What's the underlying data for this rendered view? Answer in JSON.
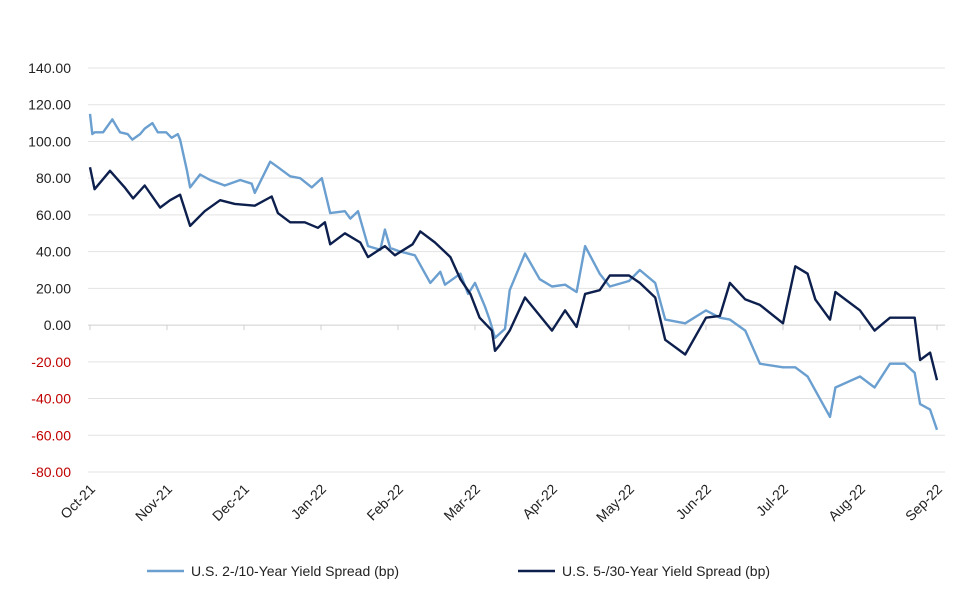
{
  "chart_data": {
    "type": "line",
    "title": "",
    "xlabel": "",
    "ylabel": "",
    "ylim": [
      -80,
      140
    ],
    "yticks": [
      "140.00",
      "120.00",
      "100.00",
      "80.00",
      "60.00",
      "40.00",
      "20.00",
      "0.00",
      "-20.00",
      "-40.00",
      "-60.00",
      "-80.00"
    ],
    "ytick_values": [
      140,
      120,
      100,
      80,
      60,
      40,
      20,
      0,
      -20,
      -40,
      -60,
      -80
    ],
    "negative_label_color": "#c00000",
    "grid": true,
    "x_categories": [
      "Oct-21",
      "Nov-21",
      "Dec-21",
      "Jan-22",
      "Feb-22",
      "Mar-22",
      "Apr-22",
      "May-22",
      "Jun-22",
      "Jul-22",
      "Aug-22",
      "Sep-22"
    ],
    "x_unit": "months since Oct-21",
    "legend_position": "bottom",
    "series": [
      {
        "name": "U.S. 2-/10-Year Yield Spread (bp)",
        "color": "#6a9fd0",
        "points": [
          [
            0,
            115
          ],
          [
            0.03,
            104
          ],
          [
            0.06,
            105
          ],
          [
            0.17,
            105
          ],
          [
            0.29,
            112
          ],
          [
            0.39,
            105
          ],
          [
            0.49,
            104
          ],
          [
            0.55,
            101
          ],
          [
            0.65,
            104
          ],
          [
            0.71,
            107
          ],
          [
            0.81,
            110
          ],
          [
            0.88,
            105
          ],
          [
            0.99,
            105
          ],
          [
            1.06,
            102
          ],
          [
            1.14,
            104
          ],
          [
            1.17,
            101
          ],
          [
            1.26,
            84
          ],
          [
            1.3,
            75
          ],
          [
            1.43,
            82
          ],
          [
            1.56,
            79
          ],
          [
            1.75,
            76
          ],
          [
            1.95,
            79
          ],
          [
            2.1,
            77
          ],
          [
            2.14,
            72
          ],
          [
            2.21,
            78
          ],
          [
            2.34,
            89
          ],
          [
            2.44,
            86
          ],
          [
            2.6,
            81
          ],
          [
            2.73,
            80
          ],
          [
            2.88,
            75
          ],
          [
            3.01,
            80
          ],
          [
            3.12,
            61
          ],
          [
            3.31,
            62
          ],
          [
            3.38,
            58
          ],
          [
            3.48,
            62
          ],
          [
            3.61,
            43
          ],
          [
            3.77,
            41
          ],
          [
            3.83,
            52
          ],
          [
            3.9,
            42
          ],
          [
            4.03,
            40
          ],
          [
            4.22,
            38
          ],
          [
            4.42,
            23
          ],
          [
            4.55,
            29
          ],
          [
            4.61,
            22
          ],
          [
            4.81,
            28
          ],
          [
            4.91,
            17
          ],
          [
            5.0,
            23
          ],
          [
            5.13,
            10
          ],
          [
            5.19,
            3
          ],
          [
            5.26,
            -7
          ],
          [
            5.39,
            -2
          ],
          [
            5.45,
            19
          ],
          [
            5.65,
            39
          ],
          [
            5.84,
            25
          ],
          [
            6.0,
            21
          ],
          [
            6.17,
            22
          ],
          [
            6.32,
            18
          ],
          [
            6.43,
            43
          ],
          [
            6.62,
            28
          ],
          [
            6.75,
            21
          ],
          [
            7.0,
            24
          ],
          [
            7.14,
            30
          ],
          [
            7.34,
            23
          ],
          [
            7.47,
            3
          ],
          [
            7.73,
            1
          ],
          [
            8.0,
            8
          ],
          [
            8.18,
            4
          ],
          [
            8.31,
            3
          ],
          [
            8.51,
            -3
          ],
          [
            8.7,
            -21
          ],
          [
            9.0,
            -23
          ],
          [
            9.16,
            -23
          ],
          [
            9.32,
            -28
          ],
          [
            9.61,
            -50
          ],
          [
            9.68,
            -34
          ],
          [
            10.0,
            -28
          ],
          [
            10.19,
            -34
          ],
          [
            10.39,
            -21
          ],
          [
            10.58,
            -21
          ],
          [
            10.71,
            -26
          ],
          [
            10.78,
            -43
          ],
          [
            10.91,
            -46
          ],
          [
            11.0,
            -57
          ]
        ]
      },
      {
        "name": "U.S. 5-/30-Year Yield Spread (bp)",
        "color": "#0d1f4d",
        "points": [
          [
            0,
            86
          ],
          [
            0.06,
            74
          ],
          [
            0.26,
            84
          ],
          [
            0.45,
            75
          ],
          [
            0.56,
            69
          ],
          [
            0.71,
            76
          ],
          [
            0.91,
            64
          ],
          [
            1.04,
            68
          ],
          [
            1.17,
            71
          ],
          [
            1.3,
            54
          ],
          [
            1.49,
            62
          ],
          [
            1.69,
            68
          ],
          [
            1.88,
            66
          ],
          [
            2.14,
            65
          ],
          [
            2.36,
            70
          ],
          [
            2.44,
            61
          ],
          [
            2.6,
            56
          ],
          [
            2.79,
            56
          ],
          [
            2.96,
            53
          ],
          [
            3.05,
            56
          ],
          [
            3.12,
            44
          ],
          [
            3.31,
            50
          ],
          [
            3.51,
            45
          ],
          [
            3.61,
            37
          ],
          [
            3.83,
            43
          ],
          [
            3.96,
            38
          ],
          [
            4.19,
            44
          ],
          [
            4.29,
            51
          ],
          [
            4.48,
            45
          ],
          [
            4.68,
            37
          ],
          [
            4.81,
            25
          ],
          [
            4.94,
            17
          ],
          [
            5.06,
            4
          ],
          [
            5.22,
            -3
          ],
          [
            5.26,
            -14
          ],
          [
            5.32,
            -11
          ],
          [
            5.45,
            -3
          ],
          [
            5.65,
            15
          ],
          [
            6.0,
            -3
          ],
          [
            6.17,
            8
          ],
          [
            6.32,
            -1
          ],
          [
            6.43,
            17
          ],
          [
            6.62,
            19
          ],
          [
            6.75,
            27
          ],
          [
            7.0,
            27
          ],
          [
            7.14,
            23
          ],
          [
            7.34,
            15
          ],
          [
            7.47,
            -8
          ],
          [
            7.73,
            -16
          ],
          [
            8.0,
            4
          ],
          [
            8.18,
            5
          ],
          [
            8.31,
            23
          ],
          [
            8.51,
            14
          ],
          [
            8.7,
            11
          ],
          [
            9.0,
            1
          ],
          [
            9.16,
            32
          ],
          [
            9.32,
            28
          ],
          [
            9.42,
            14
          ],
          [
            9.61,
            3
          ],
          [
            9.68,
            18
          ],
          [
            10.0,
            8
          ],
          [
            10.19,
            -3
          ],
          [
            10.39,
            4
          ],
          [
            10.71,
            4
          ],
          [
            10.78,
            -19
          ],
          [
            10.91,
            -15
          ],
          [
            11.0,
            -30
          ]
        ]
      }
    ]
  }
}
